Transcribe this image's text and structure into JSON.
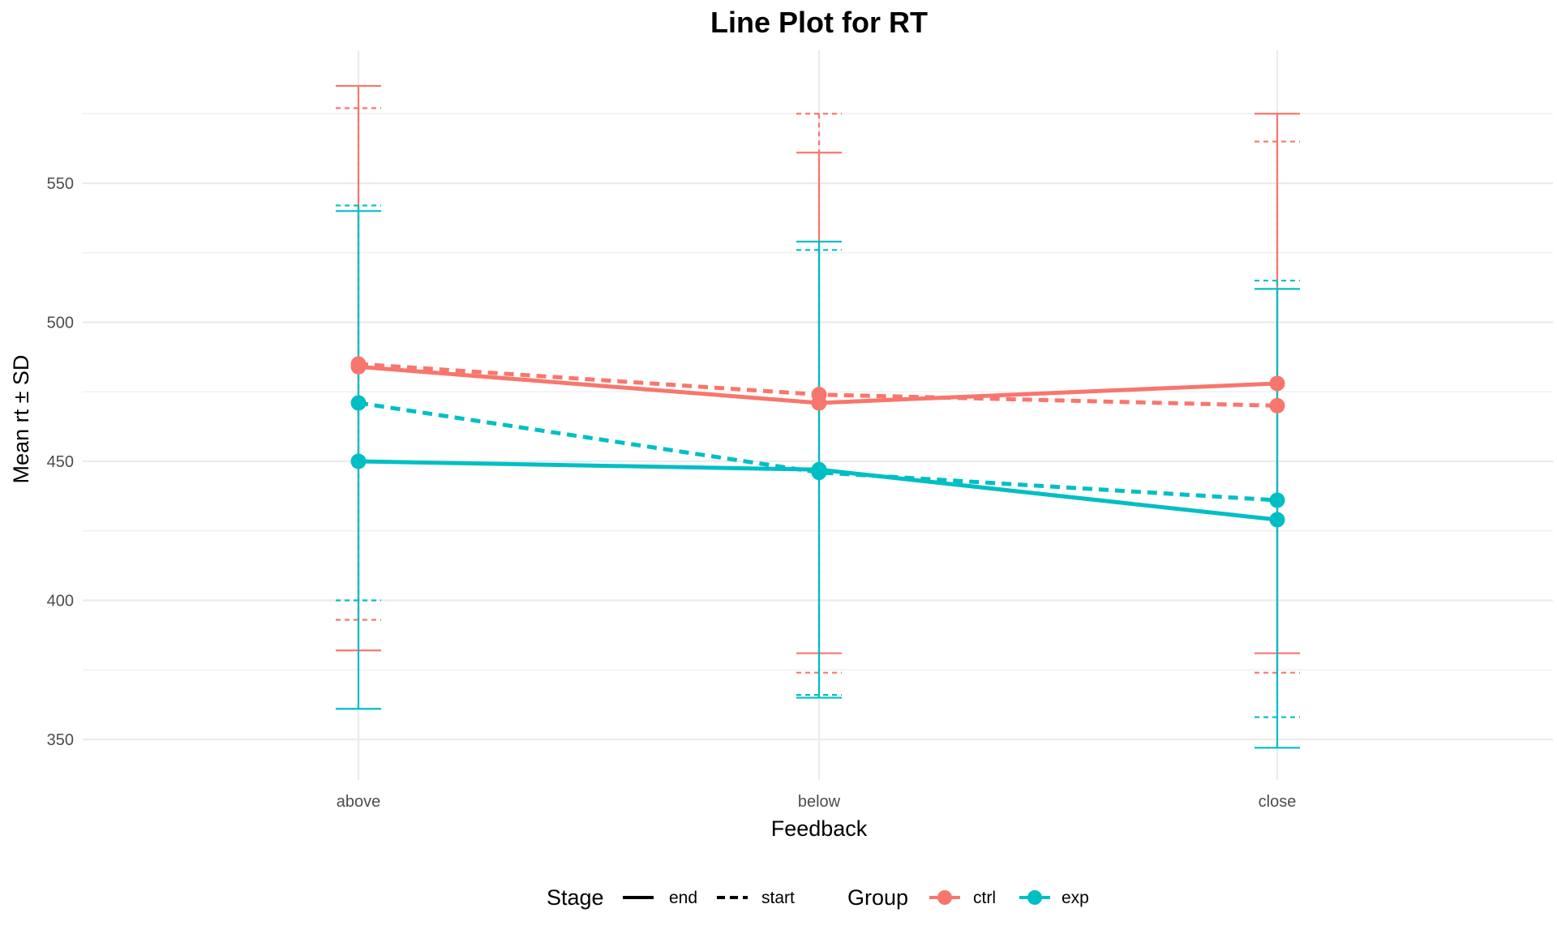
{
  "chart_data": {
    "type": "line",
    "title": "Line Plot for RT",
    "xlabel": "Feedback",
    "ylabel": "Mean rt ± SD",
    "categories": [
      "above",
      "below",
      "close"
    ],
    "yticks": [
      350,
      400,
      450,
      500,
      550
    ],
    "ylim": [
      334,
      597
    ],
    "grid": true,
    "legend_position": "bottom",
    "legend": {
      "stage_title": "Stage",
      "stage_items": [
        {
          "label": "end",
          "dash": "solid"
        },
        {
          "label": "start",
          "dash": "dashed"
        }
      ],
      "group_title": "Group",
      "group_items": [
        {
          "label": "ctrl",
          "color": "#F8766D"
        },
        {
          "label": "exp",
          "color": "#00BFC4"
        }
      ]
    },
    "series": [
      {
        "group": "ctrl",
        "stage": "end",
        "color": "#F8766D",
        "dash": "solid",
        "values": [
          484,
          471,
          478
        ],
        "lower": [
          382,
          381,
          381
        ],
        "upper": [
          585,
          561,
          575
        ]
      },
      {
        "group": "ctrl",
        "stage": "start",
        "color": "#F8766D",
        "dash": "dashed",
        "values": [
          485,
          474,
          470
        ],
        "lower": [
          393,
          374,
          374
        ],
        "upper": [
          577,
          575,
          565
        ]
      },
      {
        "group": "exp",
        "stage": "end",
        "color": "#00BFC4",
        "dash": "solid",
        "values": [
          450,
          447,
          429
        ],
        "lower": [
          361,
          365,
          347
        ],
        "upper": [
          540,
          529,
          512
        ]
      },
      {
        "group": "exp",
        "stage": "start",
        "color": "#00BFC4",
        "dash": "dashed",
        "values": [
          471,
          446,
          436
        ],
        "lower": [
          400,
          366,
          358
        ],
        "upper": [
          542,
          526,
          515
        ]
      }
    ]
  }
}
